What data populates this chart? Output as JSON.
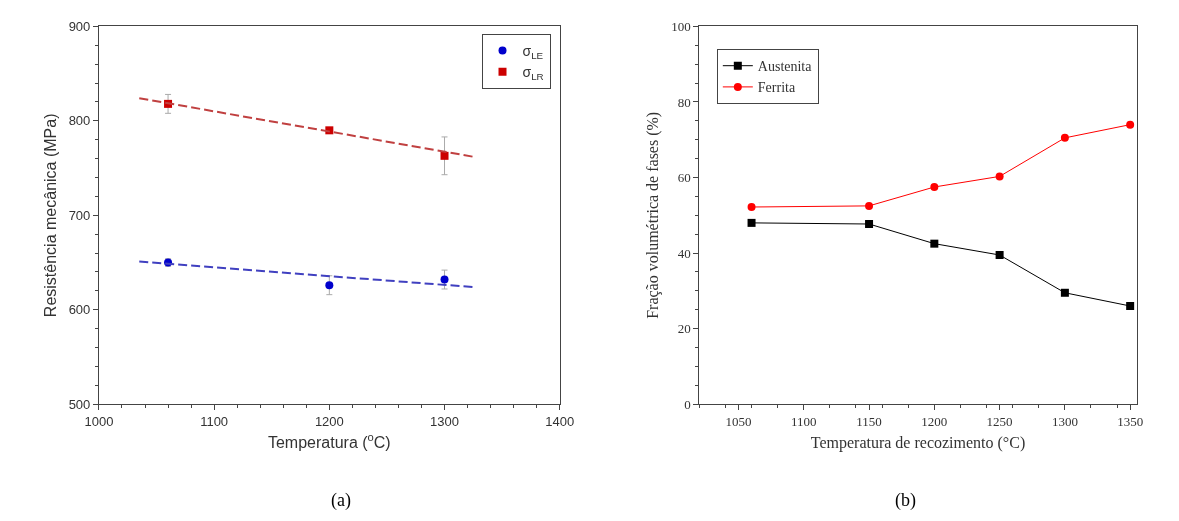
{
  "chart_data": [
    {
      "type": "scatter",
      "xlabel": "Temperatura ($^{o}$C)",
      "ylabel": "Resistência mecânica (MPa)",
      "xlim": [
        1000,
        1400
      ],
      "xticks": [
        1000,
        1100,
        1200,
        1300,
        1400
      ],
      "ylim": [
        500,
        900
      ],
      "yticks": [
        500,
        600,
        700,
        800,
        900
      ],
      "legend": "top right",
      "annotations": [
        "(a)"
      ],
      "series": [
        {
          "name": "σ$_{LE}$",
          "type": "scatter",
          "marker": "circle",
          "color": "#0000cc",
          "x": [
            1060,
            1200,
            1300
          ],
          "values": [
            650,
            626,
            632
          ],
          "errors": [
            4,
            10,
            10
          ]
        },
        {
          "name": "σ$_{LR}$",
          "type": "scatter",
          "marker": "square",
          "color": "#cc0000",
          "x": [
            1060,
            1200,
            1300
          ],
          "values": [
            818,
            790,
            763
          ],
          "errors": [
            10,
            null,
            20
          ]
        },
        {
          "type": "line",
          "line_style": "dashed",
          "marker": "none",
          "color": "#4040c0",
          "x": [
            1035,
            1325
          ],
          "values": [
            651,
            624
          ]
        },
        {
          "type": "line",
          "line_style": "dashed",
          "marker": "none",
          "color": "#c04040",
          "x": [
            1035,
            1325
          ],
          "values": [
            824,
            762
          ]
        }
      ]
    },
    {
      "type": "line",
      "xlabel": "Temperatura de recozimento (°C)",
      "ylabel": "Fração volumétrica de fases (%)",
      "xlim": [
        1020,
        1355
      ],
      "xticks": [
        1050,
        1100,
        1150,
        1200,
        1250,
        1300,
        1350
      ],
      "ylim": [
        0,
        100
      ],
      "yticks": [
        0,
        20,
        40,
        60,
        80,
        100
      ],
      "legend": "top left",
      "annotations": [
        "(b)"
      ],
      "x": [
        1060,
        1150,
        1200,
        1250,
        1300,
        1350
      ],
      "series": [
        {
          "name": "Austenita",
          "marker": "square",
          "color": "#000000",
          "values": [
            48,
            47.7,
            42.5,
            39.5,
            29.5,
            26
          ]
        },
        {
          "name": "Ferrita",
          "marker": "circle",
          "color": "#ff0000",
          "values": [
            52.2,
            52.5,
            57.5,
            60.3,
            70.5,
            74
          ]
        }
      ]
    }
  ]
}
